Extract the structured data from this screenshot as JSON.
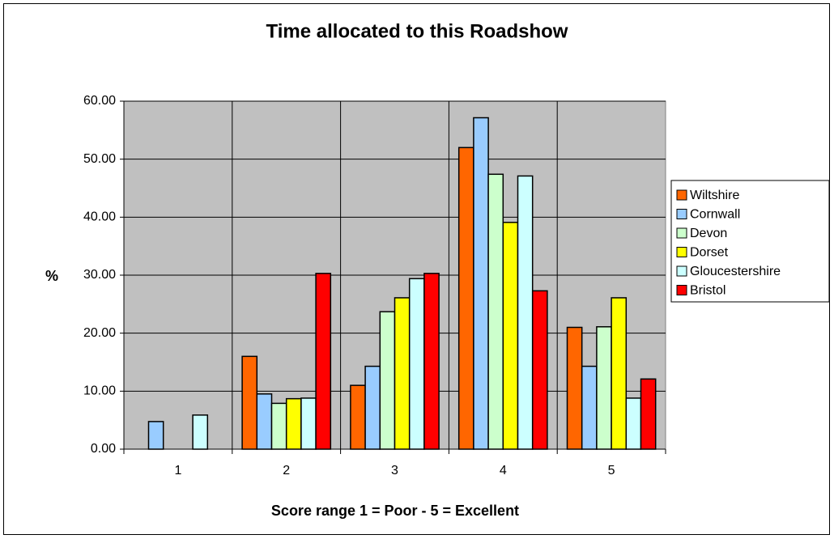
{
  "chart_data": {
    "type": "bar",
    "title": "Time allocated to this Roadshow",
    "x_label": "Score range 1 = Poor - 5 = Excellent",
    "y_label": "%",
    "categories": [
      "1",
      "2",
      "3",
      "4",
      "5"
    ],
    "series": [
      {
        "name": "Wiltshire",
        "color": "#ff6600",
        "values": [
          0,
          16.0,
          11.0,
          52.0,
          21.0
        ]
      },
      {
        "name": "Cornwall",
        "color": "#99ccff",
        "values": [
          4.76,
          9.52,
          14.29,
          57.14,
          14.29
        ]
      },
      {
        "name": "Devon",
        "color": "#ccffcc",
        "values": [
          0,
          7.9,
          23.7,
          47.4,
          21.1
        ]
      },
      {
        "name": "Dorset",
        "color": "#ffff00",
        "values": [
          0,
          8.7,
          26.1,
          39.1,
          26.1
        ]
      },
      {
        "name": "Gloucestershire",
        "color": "#ccffff",
        "values": [
          5.88,
          8.8,
          29.4,
          47.1,
          8.8
        ]
      },
      {
        "name": "Bristol",
        "color": "#ff0000",
        "values": [
          0,
          30.3,
          30.3,
          27.3,
          12.1
        ]
      }
    ],
    "ylim": [
      0,
      60
    ],
    "yticks": [
      {
        "value": 0,
        "label": "0.00"
      },
      {
        "value": 10,
        "label": "10.00"
      },
      {
        "value": 20,
        "label": "20.00"
      },
      {
        "value": 30,
        "label": "30.00"
      },
      {
        "value": 40,
        "label": "40.00"
      },
      {
        "value": 50,
        "label": "50.00"
      },
      {
        "value": 60,
        "label": "60.00"
      }
    ],
    "grid": true,
    "legend": "right"
  }
}
